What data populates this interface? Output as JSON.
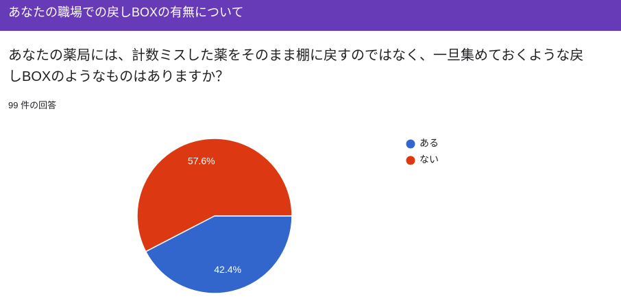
{
  "header": {
    "title": "あなたの職場での戻しBOXの有無について"
  },
  "chart_data": {
    "type": "pie",
    "title": "あなたの薬局には、計数ミスした薬をそのまま棚に戻すのではなく、一旦集めておくような戻しBOXのようなものはありますか？",
    "subtitle": "99 件の回答",
    "categories": [
      "ある",
      "ない"
    ],
    "values": [
      42.4,
      57.6
    ],
    "value_labels": [
      "42.4%",
      "57.6%"
    ],
    "colors": [
      "#3366cc",
      "#dc3912"
    ],
    "legend": "right"
  }
}
